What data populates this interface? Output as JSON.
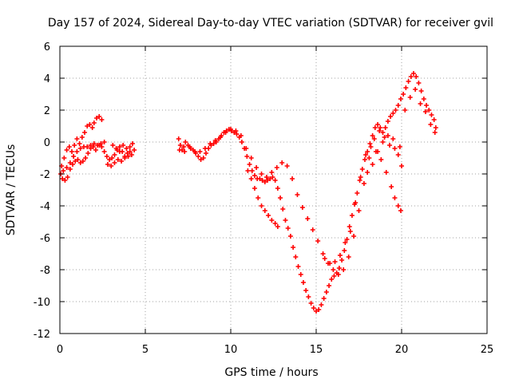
{
  "chart_data": {
    "type": "scatter",
    "title": "Day 157 of 2024, Sidereal Day-to-day VTEC variation (SDTVAR) for receiver gvil",
    "xlabel": "GPS time / hours",
    "ylabel": "SDTVAR / TECUs",
    "xlim": [
      0,
      25
    ],
    "ylim": [
      -12,
      6
    ],
    "xticks": [
      0,
      5,
      10,
      15,
      20,
      25
    ],
    "yticks": [
      -12,
      -10,
      -8,
      -6,
      -4,
      -2,
      0,
      2,
      4,
      6
    ],
    "grid": true,
    "marker": "+",
    "color": "#ff0000",
    "series": [
      {
        "points": [
          [
            0.05,
            -2.0
          ],
          [
            0.15,
            -2.3
          ],
          [
            0.3,
            -2.4
          ],
          [
            0.45,
            -2.2
          ],
          [
            0.6,
            -1.7
          ],
          [
            0.75,
            -1.4
          ],
          [
            0.9,
            -1.2
          ],
          [
            1.05,
            -1.1
          ],
          [
            1.2,
            -1.3
          ],
          [
            1.35,
            -1.2
          ],
          [
            1.5,
            -1.0
          ],
          [
            1.65,
            -0.7
          ],
          [
            1.8,
            -0.4
          ],
          [
            1.95,
            -0.3
          ],
          [
            2.1,
            -0.5
          ],
          [
            2.3,
            -0.2
          ],
          [
            2.45,
            -0.3
          ],
          [
            2.6,
            -0.6
          ],
          [
            2.75,
            -0.9
          ],
          [
            2.9,
            -1.1
          ],
          [
            3.05,
            -1.0
          ],
          [
            3.2,
            -0.8
          ],
          [
            3.35,
            -0.5
          ],
          [
            3.5,
            -0.3
          ],
          [
            3.65,
            -0.6
          ],
          [
            3.8,
            -0.9
          ],
          [
            3.95,
            -0.7
          ],
          [
            4.1,
            -0.3
          ],
          [
            4.25,
            -0.1
          ],
          [
            4.35,
            -0.5
          ],
          [
            0.1,
            -1.5
          ],
          [
            0.25,
            -1.0
          ],
          [
            0.4,
            -0.5
          ],
          [
            0.55,
            -0.3
          ],
          [
            0.7,
            -0.6
          ],
          [
            0.85,
            -0.2
          ],
          [
            1.0,
            0.2
          ],
          [
            1.15,
            -0.1
          ],
          [
            1.3,
            0.3
          ],
          [
            1.45,
            0.6
          ],
          [
            1.6,
            1.0
          ],
          [
            1.75,
            1.1
          ],
          [
            1.9,
            0.9
          ],
          [
            2.0,
            1.2
          ],
          [
            2.15,
            1.5
          ],
          [
            2.3,
            1.6
          ],
          [
            2.45,
            1.4
          ],
          [
            0.2,
            -1.8
          ],
          [
            0.4,
            -1.6
          ],
          [
            0.6,
            -1.3
          ],
          [
            0.8,
            -0.9
          ],
          [
            1.0,
            -0.6
          ],
          [
            1.2,
            -0.4
          ],
          [
            1.4,
            -0.3
          ],
          [
            1.6,
            -0.3
          ],
          [
            1.8,
            -0.2
          ],
          [
            2.0,
            -0.1
          ],
          [
            2.2,
            -0.2
          ],
          [
            2.4,
            -0.1
          ],
          [
            2.6,
            0.0
          ],
          [
            2.8,
            -1.4
          ],
          [
            3.0,
            -1.5
          ],
          [
            3.2,
            -1.3
          ],
          [
            3.4,
            -1.1
          ],
          [
            3.6,
            -1.2
          ],
          [
            3.8,
            -1.0
          ],
          [
            4.0,
            -0.9
          ],
          [
            4.2,
            -0.8
          ],
          [
            3.1,
            -0.2
          ],
          [
            3.3,
            -0.4
          ],
          [
            3.5,
            -0.6
          ],
          [
            3.7,
            -0.2
          ],
          [
            3.9,
            -0.4
          ],
          [
            4.1,
            -0.6
          ]
        ]
      },
      {
        "points": [
          [
            6.95,
            0.2
          ],
          [
            7.05,
            -0.2
          ],
          [
            7.15,
            -0.5
          ],
          [
            7.25,
            -0.3
          ],
          [
            7.35,
            0.0
          ],
          [
            7.5,
            -0.2
          ],
          [
            7.65,
            -0.4
          ],
          [
            7.8,
            -0.5
          ],
          [
            7.95,
            -0.7
          ],
          [
            8.1,
            -0.9
          ],
          [
            8.25,
            -1.1
          ],
          [
            8.4,
            -1.0
          ],
          [
            8.55,
            -0.7
          ],
          [
            8.7,
            -0.4
          ],
          [
            8.85,
            -0.2
          ],
          [
            9.0,
            -0.1
          ],
          [
            9.15,
            0.0
          ],
          [
            9.3,
            0.2
          ],
          [
            9.45,
            0.4
          ],
          [
            9.6,
            0.6
          ],
          [
            9.75,
            0.7
          ],
          [
            9.9,
            0.8
          ],
          [
            10.05,
            0.7
          ],
          [
            10.2,
            0.6
          ],
          [
            10.35,
            0.5
          ],
          [
            10.5,
            0.3
          ],
          [
            10.65,
            0.0
          ],
          [
            10.8,
            -0.4
          ],
          [
            10.95,
            -0.9
          ],
          [
            11.1,
            -1.4
          ],
          [
            11.25,
            -1.8
          ],
          [
            11.4,
            -2.1
          ],
          [
            11.55,
            -2.3
          ],
          [
            11.7,
            -2.3
          ],
          [
            11.85,
            -2.4
          ],
          [
            12.0,
            -2.5
          ],
          [
            12.15,
            -2.4
          ],
          [
            12.3,
            -2.3
          ],
          [
            12.45,
            -2.2
          ],
          [
            12.6,
            -2.4
          ],
          [
            12.75,
            -2.9
          ],
          [
            12.9,
            -3.5
          ],
          [
            13.05,
            -4.2
          ],
          [
            13.2,
            -4.9
          ],
          [
            13.35,
            -5.4
          ],
          [
            13.5,
            -5.9
          ],
          [
            13.65,
            -6.6
          ],
          [
            13.8,
            -7.2
          ],
          [
            13.95,
            -7.8
          ],
          [
            14.1,
            -8.3
          ],
          [
            14.25,
            -8.8
          ],
          [
            14.4,
            -9.3
          ],
          [
            14.55,
            -9.7
          ],
          [
            14.7,
            -10.1
          ],
          [
            14.85,
            -10.4
          ],
          [
            15.0,
            -10.6
          ],
          [
            15.15,
            -10.5
          ],
          [
            15.3,
            -10.2
          ],
          [
            15.45,
            -9.8
          ],
          [
            15.6,
            -9.4
          ],
          [
            15.75,
            -9.0
          ],
          [
            15.9,
            -8.6
          ],
          [
            16.05,
            -8.4
          ],
          [
            16.2,
            -8.2
          ],
          [
            16.35,
            -7.9
          ],
          [
            16.5,
            -7.4
          ],
          [
            16.65,
            -6.8
          ],
          [
            16.8,
            -6.1
          ],
          [
            16.95,
            -5.3
          ],
          [
            17.1,
            -4.6
          ],
          [
            17.25,
            -3.9
          ],
          [
            17.4,
            -3.2
          ],
          [
            17.55,
            -2.4
          ],
          [
            17.7,
            -1.7
          ],
          [
            17.85,
            -1.1
          ],
          [
            18.0,
            -0.6
          ],
          [
            18.15,
            -0.1
          ],
          [
            18.3,
            0.4
          ],
          [
            18.45,
            0.9
          ],
          [
            18.6,
            1.1
          ],
          [
            18.75,
            0.9
          ],
          [
            18.9,
            0.6
          ],
          [
            19.05,
            0.9
          ],
          [
            19.2,
            1.3
          ],
          [
            19.35,
            1.6
          ],
          [
            19.5,
            1.8
          ],
          [
            19.65,
            2.0
          ],
          [
            19.8,
            2.3
          ],
          [
            19.95,
            2.7
          ],
          [
            20.1,
            3.0
          ],
          [
            20.25,
            3.4
          ],
          [
            20.4,
            3.8
          ],
          [
            20.55,
            4.1
          ],
          [
            20.7,
            4.3
          ],
          [
            20.85,
            4.1
          ],
          [
            21.0,
            3.7
          ],
          [
            21.15,
            3.2
          ],
          [
            21.3,
            2.7
          ],
          [
            21.45,
            2.3
          ],
          [
            21.6,
            2.0
          ],
          [
            21.75,
            1.7
          ],
          [
            21.9,
            1.4
          ],
          [
            22.0,
            0.9
          ],
          [
            7.0,
            -0.5
          ],
          [
            7.3,
            -0.6
          ],
          [
            7.6,
            -0.3
          ],
          [
            7.9,
            -0.6
          ],
          [
            8.2,
            -0.6
          ],
          [
            8.5,
            -0.4
          ],
          [
            8.8,
            -0.1
          ],
          [
            9.1,
            0.1
          ],
          [
            9.4,
            0.3
          ],
          [
            9.7,
            0.6
          ],
          [
            10.0,
            0.8
          ],
          [
            10.3,
            0.7
          ],
          [
            10.6,
            0.4
          ],
          [
            10.9,
            -0.4
          ],
          [
            11.2,
            -1.0
          ],
          [
            11.5,
            -1.6
          ],
          [
            11.8,
            -2.0
          ],
          [
            12.1,
            -2.2
          ],
          [
            12.4,
            -1.9
          ],
          [
            12.7,
            -1.6
          ],
          [
            13.0,
            -1.3
          ],
          [
            13.3,
            -1.5
          ],
          [
            13.6,
            -2.3
          ],
          [
            13.9,
            -3.3
          ],
          [
            14.2,
            -4.1
          ],
          [
            14.5,
            -4.8
          ],
          [
            14.8,
            -5.5
          ],
          [
            15.1,
            -6.2
          ],
          [
            15.4,
            -7.0
          ],
          [
            15.7,
            -7.6
          ],
          [
            16.0,
            -8.0
          ],
          [
            16.3,
            -8.3
          ],
          [
            16.6,
            -8.0
          ],
          [
            16.9,
            -7.2
          ],
          [
            17.2,
            -5.9
          ],
          [
            17.5,
            -4.3
          ],
          [
            17.8,
            -2.6
          ],
          [
            18.1,
            -1.0
          ],
          [
            18.4,
            0.2
          ],
          [
            18.7,
            0.7
          ],
          [
            19.0,
            0.3
          ],
          [
            19.3,
            -0.2
          ],
          [
            19.6,
            -0.4
          ],
          [
            19.9,
            -0.3
          ],
          [
            11.0,
            -1.8
          ],
          [
            11.2,
            -2.3
          ],
          [
            11.4,
            -2.9
          ],
          [
            11.6,
            -3.5
          ],
          [
            11.8,
            -4.0
          ],
          [
            12.0,
            -4.3
          ],
          [
            12.2,
            -4.6
          ],
          [
            12.4,
            -4.9
          ],
          [
            12.6,
            -5.1
          ],
          [
            12.75,
            -5.3
          ],
          [
            15.5,
            -7.3
          ],
          [
            15.8,
            -7.6
          ],
          [
            16.1,
            -7.5
          ],
          [
            16.4,
            -7.1
          ],
          [
            16.7,
            -6.3
          ],
          [
            17.0,
            -5.6
          ],
          [
            17.3,
            -3.8
          ],
          [
            17.6,
            -2.2
          ],
          [
            17.9,
            -0.8
          ],
          [
            18.2,
            -0.3
          ],
          [
            18.5,
            -0.6
          ],
          [
            18.8,
            -1.1
          ],
          [
            19.1,
            -1.9
          ],
          [
            19.4,
            -2.8
          ],
          [
            19.6,
            -3.5
          ],
          [
            19.8,
            -4.0
          ],
          [
            19.95,
            -4.3
          ],
          [
            18.0,
            -1.9
          ],
          [
            18.3,
            -1.4
          ],
          [
            18.6,
            -0.6
          ],
          [
            18.9,
            0.0
          ],
          [
            19.2,
            0.4
          ],
          [
            19.5,
            0.2
          ],
          [
            19.8,
            -0.8
          ],
          [
            20.0,
            -1.5
          ],
          [
            20.2,
            2.0
          ],
          [
            20.5,
            2.8
          ],
          [
            20.8,
            3.3
          ],
          [
            21.1,
            2.4
          ],
          [
            21.4,
            1.9
          ],
          [
            21.7,
            1.1
          ],
          [
            21.95,
            0.6
          ]
        ]
      }
    ]
  }
}
